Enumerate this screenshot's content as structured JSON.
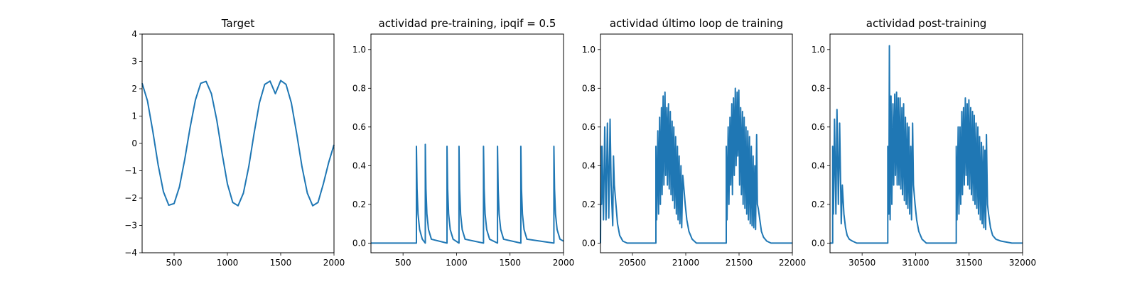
{
  "chart_data": [
    {
      "type": "line",
      "title": "Target",
      "xlabel": "",
      "ylabel": "",
      "xlim": [
        200,
        2000
      ],
      "ylim": [
        -4,
        4
      ],
      "xticks": [
        500,
        1000,
        1500,
        2000
      ],
      "xtick_labels": [
        "500",
        "1000",
        "1500",
        "2000"
      ],
      "yticks": [
        -4,
        -3,
        -2,
        -1,
        0,
        1,
        2,
        3,
        4
      ],
      "ytick_labels": [
        "−4",
        "−3",
        "−2",
        "−1",
        "0",
        "1",
        "2",
        "3",
        "4"
      ],
      "grid": false,
      "series": [
        {
          "color": "#1f77b4",
          "x": [
            200,
            250,
            300,
            350,
            400,
            450,
            500,
            550,
            600,
            650,
            700,
            750,
            800,
            850,
            900,
            950,
            1000,
            1050,
            1100,
            1150,
            1200,
            1250,
            1300,
            1350,
            1400,
            1450,
            1500,
            1550,
            1600,
            1650,
            1700,
            1750,
            1800,
            1850,
            1900,
            1950,
            2000
          ],
          "y": [
            2.2,
            1.56,
            0.45,
            -0.78,
            -1.77,
            -2.26,
            -2.2,
            -1.59,
            -0.58,
            0.58,
            1.59,
            2.2,
            2.27,
            1.82,
            0.86,
            -0.36,
            -1.48,
            -2.16,
            -2.28,
            -1.82,
            -0.86,
            0.36,
            1.48,
            2.16,
            2.28,
            1.82,
            2.3,
            2.16,
            1.48,
            0.36,
            -0.86,
            -1.82,
            -2.28,
            -2.16,
            -1.48,
            -0.7,
            -0.05
          ]
        }
      ]
    },
    {
      "type": "line",
      "title": "actividad pre-training, ipqif = 0.5",
      "xlabel": "",
      "ylabel": "",
      "xlim": [
        200,
        2000
      ],
      "ylim": [
        -0.05,
        1.08
      ],
      "xticks": [
        500,
        1000,
        1500,
        2000
      ],
      "xtick_labels": [
        "500",
        "1000",
        "1500",
        "2000"
      ],
      "yticks": [
        0,
        0.2,
        0.4,
        0.6,
        0.8,
        1.0
      ],
      "ytick_labels": [
        "0.0",
        "0.2",
        "0.4",
        "0.6",
        "0.8",
        "1.0"
      ],
      "grid": false,
      "series": [
        {
          "color": "#1f77b4",
          "x": [
            200,
            625,
            625,
            631,
            640,
            655,
            680,
            708,
            708,
            714,
            723,
            738,
            765,
            911,
            911,
            917,
            926,
            941,
            968,
            1023,
            1023,
            1029,
            1038,
            1053,
            1080,
            1252,
            1252,
            1258,
            1267,
            1282,
            1309,
            1383,
            1383,
            1389,
            1398,
            1413,
            1440,
            1601,
            1601,
            1607,
            1616,
            1631,
            1658,
            1910,
            1910,
            1916,
            1925,
            1940,
            1967,
            2000
          ],
          "y": [
            0,
            0,
            0.5,
            0.28,
            0.15,
            0.07,
            0.02,
            0,
            0.51,
            0.28,
            0.15,
            0.07,
            0.02,
            0,
            0.5,
            0.28,
            0.15,
            0.07,
            0.02,
            0,
            0.5,
            0.28,
            0.15,
            0.07,
            0.02,
            0,
            0.5,
            0.28,
            0.15,
            0.07,
            0.02,
            0,
            0.5,
            0.28,
            0.15,
            0.07,
            0.02,
            0,
            0.5,
            0.28,
            0.15,
            0.07,
            0.02,
            0,
            0.5,
            0.28,
            0.15,
            0.07,
            0.02,
            0.01
          ]
        }
      ]
    },
    {
      "type": "line",
      "title": "actividad último loop de training",
      "xlabel": "",
      "ylabel": "",
      "xlim": [
        20200,
        22000
      ],
      "ylim": [
        -0.05,
        1.08
      ],
      "xticks": [
        20500,
        21000,
        21500,
        22000
      ],
      "xtick_labels": [
        "20500",
        "21000",
        "21500",
        "22000"
      ],
      "yticks": [
        0,
        0.2,
        0.4,
        0.6,
        0.8,
        1.0
      ],
      "ytick_labels": [
        "0.0",
        "0.2",
        "0.4",
        "0.6",
        "0.8",
        "1.0"
      ],
      "grid": false,
      "series": [
        {
          "color": "#1f77b4",
          "x": [
            20200,
            20205,
            20210,
            20215,
            20228,
            20240,
            20252,
            20265,
            20278,
            20290,
            20300,
            20315,
            20322,
            20330,
            20345,
            20360,
            20380,
            20410,
            20450,
            20500,
            20720,
            20720,
            20727,
            20738,
            20745,
            20755,
            20762,
            20772,
            20778,
            20788,
            20795,
            20805,
            20812,
            20822,
            20828,
            20838,
            20845,
            20855,
            20862,
            20872,
            20878,
            20888,
            20895,
            20905,
            20912,
            20922,
            20928,
            20938,
            20945,
            20955,
            20962,
            20972,
            20980,
            20995,
            21010,
            21030,
            21060,
            21100,
            21200,
            21380,
            21380,
            21387,
            21398,
            21405,
            21415,
            21422,
            21432,
            21438,
            21448,
            21455,
            21465,
            21472,
            21482,
            21488,
            21498,
            21505,
            21515,
            21522,
            21532,
            21538,
            21548,
            21555,
            21565,
            21572,
            21582,
            21588,
            21598,
            21605,
            21615,
            21622,
            21632,
            21638,
            21648,
            21655,
            21665,
            21672,
            21680,
            21695,
            21710,
            21730,
            21760,
            21800,
            21900,
            22000
          ],
          "y": [
            0,
            0.5,
            0.2,
            0.5,
            0.12,
            0.6,
            0.12,
            0.62,
            0.13,
            0.64,
            0.3,
            0.09,
            0.45,
            0.3,
            0.2,
            0.1,
            0.04,
            0.01,
            0,
            0,
            0,
            0.5,
            0.12,
            0.58,
            0.15,
            0.65,
            0.2,
            0.7,
            0.25,
            0.76,
            0.3,
            0.78,
            0.35,
            0.7,
            0.3,
            0.72,
            0.28,
            0.68,
            0.25,
            0.63,
            0.22,
            0.6,
            0.18,
            0.55,
            0.15,
            0.5,
            0.12,
            0.45,
            0.1,
            0.4,
            0.08,
            0.35,
            0.3,
            0.2,
            0.12,
            0.06,
            0.02,
            0,
            0,
            0,
            0.5,
            0.12,
            0.6,
            0.2,
            0.65,
            0.3,
            0.72,
            0.25,
            0.75,
            0.35,
            0.8,
            0.4,
            0.78,
            0.45,
            0.79,
            0.3,
            0.7,
            0.25,
            0.68,
            0.2,
            0.65,
            0.18,
            0.6,
            0.15,
            0.58,
            0.12,
            0.55,
            0.1,
            0.5,
            0.09,
            0.45,
            0.08,
            0.4,
            0.07,
            0.56,
            0.2,
            0.18,
            0.12,
            0.06,
            0.03,
            0.01,
            0,
            0,
            0
          ]
        }
      ]
    },
    {
      "type": "line",
      "title": "actividad post-training",
      "xlabel": "",
      "ylabel": "",
      "xlim": [
        30200,
        32000
      ],
      "ylim": [
        -0.05,
        1.08
      ],
      "xticks": [
        30500,
        31000,
        31500,
        32000
      ],
      "xtick_labels": [
        "30500",
        "31000",
        "31500",
        "32000"
      ],
      "yticks": [
        0,
        0.2,
        0.4,
        0.6,
        0.8,
        1.0
      ],
      "ytick_labels": [
        "0.0",
        "0.2",
        "0.4",
        "0.6",
        "0.8",
        "1.0"
      ],
      "grid": false,
      "series": [
        {
          "color": "#1f77b4",
          "x": [
            30200,
            30225,
            30225,
            30232,
            30242,
            30255,
            30265,
            30278,
            30290,
            30305,
            30315,
            30330,
            30345,
            30360,
            30380,
            30410,
            30450,
            30500,
            30740,
            30740,
            30750,
            30755,
            30762,
            30770,
            30778,
            30788,
            30795,
            30805,
            30812,
            30822,
            30828,
            30838,
            30845,
            30855,
            30862,
            30872,
            30878,
            30888,
            30895,
            30905,
            30912,
            30922,
            30928,
            30938,
            30945,
            30955,
            30962,
            30972,
            30980,
            30995,
            31010,
            31030,
            31060,
            31100,
            31200,
            31380,
            31380,
            31387,
            31398,
            31405,
            31415,
            31422,
            31432,
            31438,
            31448,
            31455,
            31465,
            31472,
            31482,
            31488,
            31498,
            31505,
            31515,
            31522,
            31532,
            31538,
            31548,
            31555,
            31565,
            31572,
            31582,
            31588,
            31598,
            31605,
            31615,
            31622,
            31632,
            31638,
            31648,
            31655,
            31662,
            31672,
            31682,
            31700,
            31720,
            31750,
            31800,
            31900,
            32000
          ],
          "y": [
            0,
            0,
            0.5,
            0.15,
            0.64,
            0.15,
            0.69,
            0.2,
            0.62,
            0.1,
            0.3,
            0.15,
            0.08,
            0.04,
            0.02,
            0.01,
            0,
            0,
            0,
            0.5,
            0.15,
            1.02,
            0.12,
            0.76,
            0.2,
            0.72,
            0.3,
            0.77,
            0.35,
            0.78,
            0.3,
            0.75,
            0.3,
            0.75,
            0.28,
            0.7,
            0.25,
            0.72,
            0.22,
            0.65,
            0.2,
            0.62,
            0.18,
            0.6,
            0.15,
            0.5,
            0.12,
            0.62,
            0.3,
            0.2,
            0.12,
            0.06,
            0.02,
            0,
            0,
            0,
            0.5,
            0.12,
            0.6,
            0.15,
            0.6,
            0.2,
            0.68,
            0.25,
            0.7,
            0.3,
            0.75,
            0.35,
            0.72,
            0.3,
            0.74,
            0.28,
            0.7,
            0.25,
            0.68,
            0.22,
            0.66,
            0.2,
            0.62,
            0.18,
            0.6,
            0.15,
            0.55,
            0.12,
            0.52,
            0.1,
            0.5,
            0.08,
            0.48,
            0.07,
            0.56,
            0.2,
            0.15,
            0.08,
            0.04,
            0.02,
            0.01,
            0,
            0
          ]
        }
      ]
    }
  ]
}
